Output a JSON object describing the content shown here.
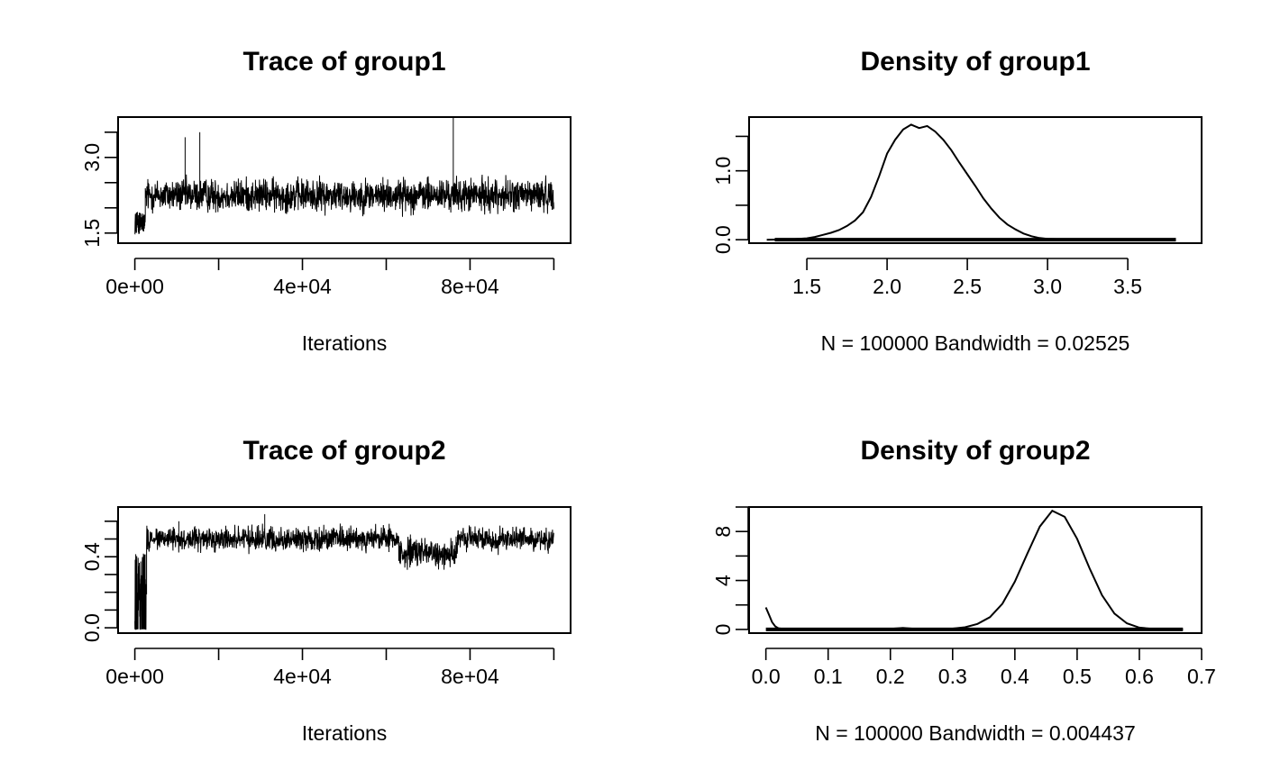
{
  "chart_data": [
    {
      "id": "trace1",
      "type": "line",
      "title": "Trace of group1",
      "xlabel": "Iterations",
      "ylabel": "",
      "xlim": [
        -4000,
        104000
      ],
      "ylim": [
        1.3,
        3.8
      ],
      "x_ticks": [
        0,
        20000,
        40000,
        60000,
        80000,
        100000
      ],
      "x_tick_labels": [
        {
          "value": 0,
          "label": "0e+00"
        },
        {
          "value": 40000,
          "label": "4e+04"
        },
        {
          "value": 80000,
          "label": "8e+04"
        }
      ],
      "y_ticks": [
        1.5,
        2.0,
        2.5,
        3.0,
        3.5
      ],
      "y_tick_labels": [
        {
          "value": 1.5,
          "label": "1.5"
        },
        {
          "value": 3.0,
          "label": "3.0"
        }
      ],
      "n_iterations": 100000,
      "burn_in": {
        "end": 2500,
        "center": 1.7,
        "spread": 0.22
      },
      "segments": [
        {
          "start": 2500,
          "end": 100000,
          "center": 2.25,
          "spread": 0.3
        }
      ],
      "spikes": [
        {
          "x": 12000,
          "y": 3.4
        },
        {
          "x": 15500,
          "y": 3.5
        },
        {
          "x": 76000,
          "y": 3.8
        }
      ]
    },
    {
      "id": "density1",
      "type": "line",
      "title": "Density of group1",
      "xlabel": "N = 100000   Bandwidth = 0.02525",
      "ylabel": "",
      "xlim": [
        1.14,
        3.96
      ],
      "ylim": [
        -0.05,
        1.78
      ],
      "x_ticks": [
        1.5,
        2.0,
        2.5,
        3.0,
        3.5
      ],
      "x_tick_labels": [
        {
          "value": 1.5,
          "label": "1.5"
        },
        {
          "value": 2.0,
          "label": "2.0"
        },
        {
          "value": 2.5,
          "label": "2.5"
        },
        {
          "value": 3.0,
          "label": "3.0"
        },
        {
          "value": 3.5,
          "label": "3.5"
        }
      ],
      "y_ticks": [
        0.0,
        0.5,
        1.0,
        1.5
      ],
      "y_tick_labels": [
        {
          "value": 0.0,
          "label": "0.0"
        },
        {
          "value": 1.0,
          "label": "1.0"
        }
      ],
      "x": [
        1.25,
        1.4,
        1.5,
        1.55,
        1.6,
        1.65,
        1.7,
        1.75,
        1.8,
        1.85,
        1.9,
        1.95,
        2.0,
        2.05,
        2.1,
        2.15,
        2.2,
        2.25,
        2.3,
        2.35,
        2.4,
        2.45,
        2.5,
        2.55,
        2.6,
        2.65,
        2.7,
        2.75,
        2.8,
        2.85,
        2.9,
        2.95,
        3.0,
        3.1,
        3.3,
        3.8
      ],
      "y": [
        0.0,
        0.005,
        0.02,
        0.04,
        0.07,
        0.1,
        0.14,
        0.2,
        0.28,
        0.4,
        0.62,
        0.92,
        1.25,
        1.45,
        1.6,
        1.67,
        1.62,
        1.65,
        1.57,
        1.45,
        1.3,
        1.12,
        0.95,
        0.78,
        0.6,
        0.45,
        0.32,
        0.22,
        0.15,
        0.09,
        0.05,
        0.025,
        0.012,
        0.005,
        0.001,
        0.0
      ],
      "rug_range": [
        1.3,
        3.8
      ]
    },
    {
      "id": "trace2",
      "type": "line",
      "title": "Trace of group2",
      "xlabel": "Iterations",
      "ylabel": "",
      "xlim": [
        -4000,
        104000
      ],
      "ylim": [
        -0.03,
        0.68
      ],
      "x_ticks": [
        0,
        20000,
        40000,
        60000,
        80000,
        100000
      ],
      "x_tick_labels": [
        {
          "value": 0,
          "label": "0e+00"
        },
        {
          "value": 40000,
          "label": "4e+04"
        },
        {
          "value": 80000,
          "label": "8e+04"
        }
      ],
      "y_ticks": [
        0.0,
        0.1,
        0.2,
        0.3,
        0.4,
        0.5,
        0.6
      ],
      "y_tick_labels": [
        {
          "value": 0.0,
          "label": "0.0"
        },
        {
          "value": 0.4,
          "label": "0.4"
        }
      ],
      "n_iterations": 100000,
      "burn_in": {
        "end": 2800,
        "center": 0.1,
        "spread": 0.35
      },
      "segments": [
        {
          "start": 2800,
          "end": 63000,
          "center": 0.5,
          "spread": 0.06
        },
        {
          "start": 63000,
          "end": 77000,
          "center": 0.42,
          "spread": 0.07
        },
        {
          "start": 77000,
          "end": 100000,
          "center": 0.5,
          "spread": 0.06
        }
      ],
      "spikes": [
        {
          "x": 31000,
          "y": 0.64
        },
        {
          "x": 10500,
          "y": 0.6
        }
      ]
    },
    {
      "id": "density2",
      "type": "line",
      "title": "Density of group2",
      "xlabel": "N = 100000   Bandwidth = 0.004437",
      "ylabel": "",
      "xlim": [
        -0.027,
        0.7
      ],
      "ylim": [
        -0.3,
        10.0
      ],
      "x_ticks": [
        0.0,
        0.1,
        0.2,
        0.3,
        0.4,
        0.5,
        0.6,
        0.7
      ],
      "x_tick_labels": [
        {
          "value": 0.0,
          "label": "0.0"
        },
        {
          "value": 0.1,
          "label": "0.1"
        },
        {
          "value": 0.2,
          "label": "0.2"
        },
        {
          "value": 0.3,
          "label": "0.3"
        },
        {
          "value": 0.4,
          "label": "0.4"
        },
        {
          "value": 0.5,
          "label": "0.5"
        },
        {
          "value": 0.6,
          "label": "0.6"
        },
        {
          "value": 0.7,
          "label": "0.7"
        }
      ],
      "y_ticks": [
        0,
        2,
        4,
        6,
        8,
        10
      ],
      "y_tick_labels": [
        {
          "value": 0,
          "label": "0"
        },
        {
          "value": 4,
          "label": "4"
        },
        {
          "value": 8,
          "label": "8"
        }
      ],
      "x": [
        0.0,
        0.005,
        0.01,
        0.015,
        0.02,
        0.03,
        0.05,
        0.1,
        0.15,
        0.2,
        0.22,
        0.24,
        0.28,
        0.3,
        0.32,
        0.34,
        0.36,
        0.38,
        0.4,
        0.42,
        0.44,
        0.46,
        0.48,
        0.5,
        0.52,
        0.54,
        0.56,
        0.58,
        0.6,
        0.62,
        0.67
      ],
      "y": [
        1.8,
        1.2,
        0.6,
        0.25,
        0.1,
        0.03,
        0.02,
        0.02,
        0.02,
        0.05,
        0.12,
        0.05,
        0.04,
        0.07,
        0.18,
        0.45,
        1.0,
        2.1,
        3.9,
        6.2,
        8.4,
        9.7,
        9.2,
        7.4,
        5.0,
        2.8,
        1.3,
        0.5,
        0.15,
        0.05,
        0.0
      ],
      "rug_range": [
        0.0,
        0.67
      ]
    }
  ]
}
